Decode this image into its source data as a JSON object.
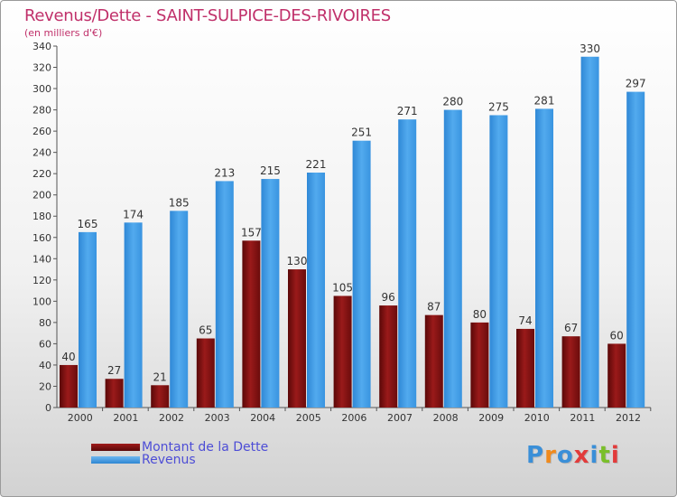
{
  "header": {
    "title": "Revenus/Dette - SAINT-SULPICE-DES-RIVOIRES",
    "subtitle": "(en milliers d'€)"
  },
  "legend": {
    "items": [
      {
        "label": "Montant de la Dette",
        "color": "#7a0e0e"
      },
      {
        "label": "Revenus",
        "color": "#3c9be6"
      }
    ]
  },
  "logo": {
    "text": "Proxiti",
    "colors": [
      "#3a8fd8",
      "#f08a1c",
      "#3a8fd8",
      "#e23b3b",
      "#3a8fd8",
      "#7abf2a",
      "#e23b3b"
    ]
  },
  "chart_data": {
    "type": "bar",
    "title": "Revenus/Dette - SAINT-SULPICE-DES-RIVOIRES",
    "subtitle": "(en milliers d'€)",
    "categories": [
      "2000",
      "2001",
      "2002",
      "2003",
      "2004",
      "2005",
      "2006",
      "2007",
      "2008",
      "2009",
      "2010",
      "2011",
      "2012"
    ],
    "series": [
      {
        "name": "Montant de la Dette",
        "color": "#7a0e0e",
        "values": [
          40,
          27,
          21,
          65,
          157,
          130,
          105,
          96,
          87,
          80,
          74,
          67,
          60
        ]
      },
      {
        "name": "Revenus",
        "color": "#3c9be6",
        "values": [
          165,
          174,
          185,
          213,
          215,
          221,
          251,
          271,
          280,
          275,
          281,
          330,
          297
        ]
      }
    ],
    "ylim": [
      0,
      340
    ],
    "yticks": [
      0,
      20,
      40,
      60,
      80,
      100,
      120,
      140,
      160,
      180,
      200,
      220,
      240,
      260,
      280,
      300,
      320,
      340
    ],
    "grid": false,
    "legend_position": "bottom-left"
  }
}
